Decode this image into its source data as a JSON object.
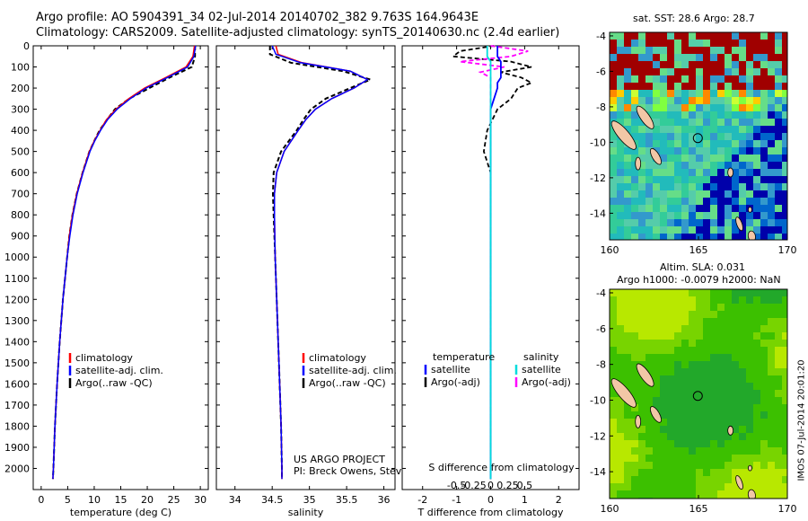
{
  "figure": {
    "title_line1": "Argo profile: AO 5904391_34 02-Jul-2014 20140702_382 9.763S 164.9643E",
    "title_line2": "Climatology: CARS2009. Satellite-adjusted climatology: synTS_20140630.nc (2.4d earlier)",
    "footer": "IMOS 07-Jul-2014 20:01:20",
    "credit_line1": "US ARGO PROJECT",
    "credit_line2": "PI: Breck Owens, Steve Jayne, and P.E. Robbi"
  },
  "colors": {
    "climatology": "#ff0000",
    "satellite": "#0000ff",
    "argo": "#000000",
    "sal_satellite": "#00dddd",
    "sal_argo": "#ff00ff"
  },
  "chart_data": [
    {
      "type": "line",
      "panel": "temperature",
      "xlabel": "temperature (deg C)",
      "ylabel": "",
      "xlim": [
        -1.5,
        31.5
      ],
      "ylim": [
        2100,
        0
      ],
      "xticks": [
        0,
        5,
        10,
        15,
        20,
        25,
        30
      ],
      "yticks": [
        0,
        100,
        200,
        300,
        400,
        500,
        600,
        700,
        800,
        900,
        1000,
        1100,
        1200,
        1300,
        1400,
        1500,
        1600,
        1700,
        1800,
        1900,
        2000
      ],
      "legend": [
        "climatology",
        "satellite-adj. clim.",
        "Argo(..raw -QC)"
      ],
      "depth": [
        0,
        50,
        100,
        150,
        200,
        250,
        300,
        350,
        400,
        450,
        500,
        600,
        700,
        800,
        900,
        1000,
        1200,
        1400,
        1600,
        1800,
        2000,
        2050
      ],
      "series": [
        {
          "name": "climatology",
          "values": [
            28.9,
            28.6,
            27.3,
            23.5,
            19.5,
            16.5,
            14.1,
            12.3,
            11.1,
            10.0,
            9.1,
            7.8,
            6.7,
            5.9,
            5.3,
            4.9,
            4.1,
            3.5,
            3.0,
            2.6,
            2.3,
            2.2
          ]
        },
        {
          "name": "satellite-adj. clim.",
          "values": [
            29.1,
            28.8,
            27.6,
            23.8,
            19.8,
            16.8,
            14.3,
            12.5,
            11.2,
            10.1,
            9.2,
            7.9,
            6.8,
            6.0,
            5.4,
            4.9,
            4.1,
            3.5,
            3.0,
            2.6,
            2.3,
            2.2
          ]
        },
        {
          "name": "Argo(..raw -QC)",
          "values": [
            29.0,
            29.0,
            28.4,
            24.2,
            20.4,
            16.6,
            13.9,
            12.4,
            11.0,
            10.0,
            9.1,
            7.8,
            6.7,
            5.9,
            5.3,
            4.9,
            4.1,
            3.5,
            3.0,
            2.6,
            2.3,
            2.2
          ]
        }
      ]
    },
    {
      "type": "line",
      "panel": "salinity",
      "xlabel": "salinity",
      "ylabel": "",
      "xlim": [
        33.75,
        36.15
      ],
      "ylim": [
        2100,
        0
      ],
      "xticks": [
        34,
        34.5,
        35,
        35.5,
        36
      ],
      "xticklabels": [
        "34",
        "34.5",
        "35",
        "35.5",
        "36"
      ],
      "legend": [
        "climatology",
        "satellite-adj. clim.",
        "Argo(..raw -QC)"
      ],
      "depth": [
        0,
        40,
        80,
        120,
        160,
        200,
        250,
        300,
        350,
        400,
        500,
        600,
        700,
        800,
        1000,
        1200,
        1500,
        1800,
        2000,
        2050
      ],
      "series": [
        {
          "name": "climatology",
          "values": [
            34.55,
            34.58,
            34.9,
            35.55,
            35.78,
            35.6,
            35.3,
            35.08,
            34.95,
            34.85,
            34.66,
            34.56,
            34.53,
            34.53,
            34.54,
            34.56,
            34.59,
            34.62,
            34.63,
            34.63
          ]
        },
        {
          "name": "satellite-adj. clim.",
          "values": [
            34.5,
            34.55,
            34.88,
            35.55,
            35.78,
            35.6,
            35.3,
            35.08,
            34.95,
            34.85,
            34.66,
            34.56,
            34.53,
            34.53,
            34.54,
            34.56,
            34.59,
            34.62,
            34.63,
            34.63
          ]
        },
        {
          "name": "Argo(..raw -QC)",
          "values": [
            34.47,
            34.47,
            34.75,
            35.45,
            35.82,
            35.55,
            35.22,
            35.02,
            34.92,
            34.83,
            34.62,
            34.52,
            34.51,
            34.52,
            34.54,
            34.56,
            34.59,
            34.62,
            34.63,
            34.63
          ]
        }
      ]
    },
    {
      "type": "line",
      "panel": "difference",
      "xlabel": "T difference from climatology",
      "xlabel_top": "S difference from climatology",
      "xlim": [
        -2.6,
        2.6
      ],
      "ylim": [
        2100,
        0
      ],
      "xticks": [
        -2,
        -1,
        0,
        1,
        2
      ],
      "xticks_sal": [
        -0.5,
        -0.25,
        0,
        0.25,
        0.5
      ],
      "xticklabels_sal": [
        "-0.5",
        "-0.25",
        "0",
        "0.25",
        "0.5"
      ],
      "legend_heads": [
        "temperature",
        "salinity"
      ],
      "legend": [
        "satellite",
        "Argo(-adj)",
        "satellite",
        "Argo(-adj)"
      ],
      "depth": [
        0,
        25,
        50,
        75,
        100,
        125,
        150,
        175,
        200,
        250,
        300,
        400,
        500,
        600,
        800,
        1000,
        1500,
        2000,
        2050
      ],
      "series": [
        {
          "name": "satellite",
          "values": [
            0.2,
            0.2,
            0.2,
            0.3,
            0.3,
            0.3,
            0.3,
            0.2,
            0.2,
            0.1,
            0.0,
            0.0,
            0.0,
            0.0,
            0.0,
            0.0,
            0.0,
            0.0,
            0.0
          ]
        },
        {
          "name": "Argo(-adj)",
          "values": [
            0.1,
            -0.9,
            -1.1,
            0.6,
            1.2,
            0.3,
            0.9,
            1.2,
            0.8,
            0.6,
            0.2,
            -0.1,
            -0.2,
            0.0,
            0.0,
            0.0,
            0.0,
            0.0,
            0.0
          ]
        },
        {
          "name": "satellite",
          "values": [
            -0.05,
            -0.05,
            -0.05,
            0.0,
            0.0,
            0.0,
            0.0,
            0.0,
            0.0,
            0.0,
            0.0,
            0.0,
            0.0,
            0.0,
            0.0,
            0.0,
            0.0,
            0.0,
            0.0
          ]
        },
        {
          "name": "Argo(-adj)",
          "values": [
            0.0,
            0.55,
            0.3,
            -0.45,
            0.2,
            -0.15,
            0.0,
            0.0,
            0.0,
            0.0,
            0.0,
            0.0,
            0.0,
            0.0,
            0.0,
            0.0,
            0.0,
            0.0,
            0.0
          ]
        }
      ]
    },
    {
      "type": "heatmap",
      "panel": "sst-map",
      "title": "sat. SST: 28.6  Argo: 28.7",
      "xlim": [
        160,
        170
      ],
      "ylim": [
        -15.5,
        -3.8
      ],
      "xticks": [
        160,
        165,
        170
      ],
      "yticks": [
        -4,
        -6,
        -8,
        -10,
        -12,
        -14
      ],
      "marker": {
        "lon": 164.9643,
        "lat": -9.763
      }
    },
    {
      "type": "heatmap",
      "panel": "sla-map",
      "title": "Altim. SLA: 0.031",
      "subtitle": "Argo h1000: -0.0079 h2000: NaN",
      "xlim": [
        160,
        170
      ],
      "ylim": [
        -15.5,
        -3.8
      ],
      "xticks": [
        160,
        165,
        170
      ],
      "yticks": [
        -4,
        -6,
        -8,
        -10,
        -12,
        -14
      ],
      "marker": {
        "lon": 164.9643,
        "lat": -9.763
      }
    }
  ]
}
